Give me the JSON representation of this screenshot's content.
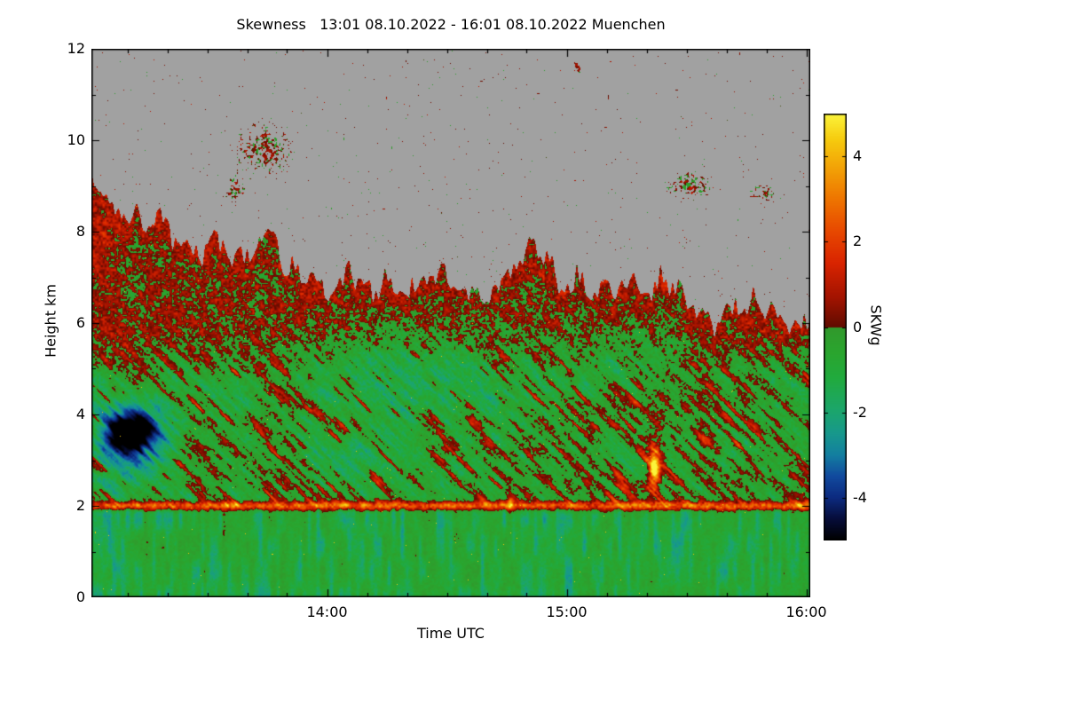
{
  "chart": {
    "title": "Skewness   13:01 08.10.2022 - 16:01 08.10.2022 Muenchen",
    "xlabel": "Time UTC",
    "ylabel": "Height km",
    "colorbar_label": "SKWg"
  },
  "chart_data": {
    "type": "heatmap",
    "title": "Skewness   13:01 08.10.2022 - 16:01 08.10.2022 Muenchen",
    "site": "Muenchen",
    "time_start": "13:01 08.10.2022",
    "time_end": "16:01 08.10.2022",
    "x": {
      "label": "Time UTC",
      "start": "13:01",
      "end": "16:01",
      "duration_min": 180,
      "ticks": [
        {
          "label": "14:00",
          "t_min": 59
        },
        {
          "label": "15:00",
          "t_min": 119
        },
        {
          "label": "16:00",
          "t_min": 179
        }
      ],
      "minor_tick_every_min": 10
    },
    "y": {
      "label": "Height km",
      "min": 0,
      "max": 12,
      "ticks": [
        0,
        2,
        4,
        6,
        8,
        10,
        12
      ],
      "minor_tick": 1
    },
    "colorbar": {
      "label": "SKWg",
      "min": -5,
      "max": 5,
      "tick_values": [
        4,
        2,
        0,
        -2,
        -4
      ],
      "tick_labels": [
        "4",
        "2",
        "0",
        "-2",
        "-4"
      ]
    },
    "no_data_color": "#a1a1a1",
    "colormap_stops": [
      [
        -5.0,
        "#000000"
      ],
      [
        -4.5,
        "#060d3a"
      ],
      [
        -4.0,
        "#0c2b80"
      ],
      [
        -3.5,
        "#114a9e"
      ],
      [
        -3.0,
        "#137fa0"
      ],
      [
        -2.5,
        "#17988c"
      ],
      [
        -2.0,
        "#1ba56e"
      ],
      [
        -1.2,
        "#21aa3e"
      ],
      [
        -0.6,
        "#2aa52e"
      ],
      [
        -0.02,
        "#31992c"
      ],
      [
        0.0,
        "#600c00"
      ],
      [
        0.7,
        "#a31300"
      ],
      [
        1.5,
        "#d92400"
      ],
      [
        2.3,
        "#e84b00"
      ],
      [
        3.0,
        "#ee7500"
      ],
      [
        3.7,
        "#f2a006"
      ],
      [
        4.4,
        "#f6cb0e"
      ],
      [
        5.0,
        "#fbf43c"
      ]
    ],
    "regions": [
      {
        "height_km": [
          0,
          1.9
        ],
        "mean_value": -0.8,
        "pattern": "green with teal vertical streaks"
      },
      {
        "height_km": [
          1.9,
          2.15
        ],
        "mean_value": 2.5,
        "pattern": "continuous strong positive (red) layer across all times"
      },
      {
        "height_km": [
          2.15,
          5.0
        ],
        "mean_value": -0.3,
        "pattern": "green with slanted red filaments"
      },
      {
        "height_km": [
          5.0,
          8.6
        ],
        "mean_value": 0.25,
        "pattern": "dense red/green speckle up to cloud top"
      },
      {
        "height_km": [
          8.6,
          12
        ],
        "mean_value": null,
        "pattern": "no data (gray) above cloud top, scattered cloud specks"
      }
    ],
    "features": {
      "cloud_top_points": [
        [
          0,
          8.6
        ],
        [
          25,
          7.7
        ],
        [
          45,
          7.5
        ],
        [
          60,
          7.15
        ],
        [
          80,
          7.1
        ],
        [
          100,
          7.05
        ],
        [
          120,
          7.0
        ],
        [
          140,
          6.7
        ],
        [
          155,
          6.35
        ],
        [
          168,
          6.15
        ],
        [
          180,
          6.05
        ]
      ],
      "shear_line": {
        "t0": 0,
        "t1": 180,
        "h": 2.0,
        "amp": 3.2,
        "sigma": 0.09
      },
      "negative_patch": {
        "t": 10,
        "h": 3.6,
        "rt": 7,
        "rh": 0.5,
        "amp": -5.0,
        "halo_amp": -1.6
      },
      "hotspot_main": {
        "t": 141,
        "h": 2.8,
        "rt": 1.2,
        "rh": 0.35,
        "amp": 5.5,
        "column_amp": 1.6
      },
      "hotspot_small": {
        "t": 105,
        "h": 2.07,
        "rt": 0.8,
        "rh": 0.14,
        "amp": 3.2
      },
      "green_zones": [
        {
          "t": 80,
          "h": 4.8,
          "rt": 26,
          "rh": 1.1,
          "amp": -1.0
        },
        {
          "t": 63,
          "h": 3.2,
          "rt": 10,
          "rh": 0.7,
          "amp": -0.6
        },
        {
          "t": 3,
          "h": 1.4,
          "rt": 5,
          "rh": 0.9,
          "amp": -0.9
        },
        {
          "t": 147,
          "h": 1.2,
          "rt": 4,
          "rh": 0.8,
          "amp": -0.7
        },
        {
          "t": 115,
          "h": 1.0,
          "rt": 6,
          "rh": 0.9,
          "amp": -0.5
        },
        {
          "t": 133,
          "h": 5.3,
          "rt": 12,
          "rh": 0.8,
          "amp": -0.7
        }
      ],
      "red_zone_left_top": {
        "t": 2,
        "h": 7.8,
        "rt": 4,
        "rh": 0.9,
        "amp": 0.7
      },
      "red_streaks_bottom_left": {
        "t_range": [
          8,
          34
        ],
        "h_max": 1.95,
        "amp": 1.9
      },
      "speck_clusters": [
        {
          "t": 43,
          "h": 9.8,
          "rt": 7,
          "rh": 0.55,
          "a": 0.4
        },
        {
          "t": 36,
          "h": 8.9,
          "rt": 3,
          "rh": 0.3,
          "a": 0.3
        },
        {
          "t": 150,
          "h": 9.0,
          "rt": 6,
          "rh": 0.3,
          "a": 0.38
        },
        {
          "t": 168,
          "h": 8.85,
          "rt": 3,
          "rh": 0.2,
          "a": 0.35
        },
        {
          "t": 122,
          "h": 11.6,
          "rt": 1.2,
          "rh": 0.12,
          "a": 0.5
        }
      ]
    }
  }
}
